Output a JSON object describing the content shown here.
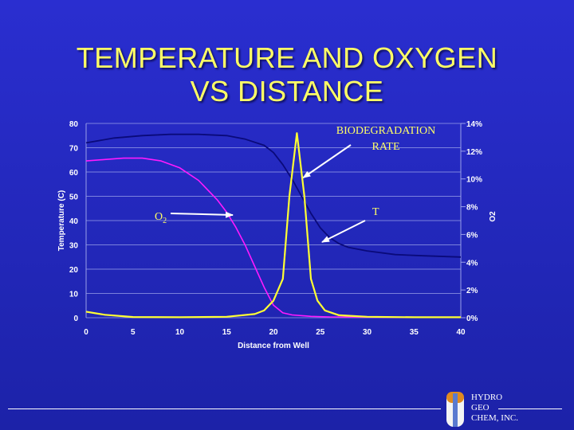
{
  "slide": {
    "title_line1": "TEMPERATURE AND OXYGEN",
    "title_line2": "VS DISTANCE"
  },
  "colors": {
    "temperature": "#0a0a7a",
    "oxygen": "#ff1aff",
    "biodegradation": "#ffff33",
    "label": "#ffff66",
    "grid": "#9aa0e8",
    "arrow": "#ffffff"
  },
  "chart_data": {
    "type": "line",
    "title": "",
    "xlabel": "Distance from Well",
    "ylabel": "Temperature (C)",
    "y2label": "O2",
    "xlim": [
      0,
      40
    ],
    "ylim": [
      0,
      80
    ],
    "y2lim": [
      0,
      14
    ],
    "x_ticks": [
      "0",
      "5",
      "10",
      "15",
      "20",
      "25",
      "30",
      "35",
      "40"
    ],
    "y_ticks": [
      "0",
      "10",
      "20",
      "30",
      "40",
      "50",
      "60",
      "70",
      "80"
    ],
    "y2_ticks": [
      "0%",
      "2%",
      "4%",
      "6%",
      "8%",
      "10%",
      "12%",
      "14%"
    ],
    "grid": true,
    "series": [
      {
        "name": "T",
        "axis": "left",
        "x": [
          0,
          3,
          6,
          9,
          12,
          15,
          17,
          19,
          20,
          21,
          22,
          23,
          24,
          25,
          26,
          27,
          28,
          30,
          33,
          36,
          40
        ],
        "y": [
          72,
          74,
          75,
          75.5,
          75.5,
          75,
          73.5,
          71,
          68,
          63,
          57,
          50,
          43,
          37,
          33,
          30.5,
          29,
          27.5,
          26,
          25.5,
          25
        ]
      },
      {
        "name": "O2",
        "axis": "right",
        "x": [
          0,
          2,
          4,
          6,
          8,
          10,
          12,
          14,
          15,
          16,
          17,
          18,
          19,
          20,
          21,
          22,
          24,
          26,
          30,
          35,
          40
        ],
        "y": [
          11.3,
          11.4,
          11.5,
          11.5,
          11.3,
          10.8,
          9.9,
          8.5,
          7.6,
          6.5,
          5.2,
          3.7,
          2.2,
          0.9,
          0.35,
          0.2,
          0.1,
          0.06,
          0.04,
          0.03,
          0.03
        ]
      },
      {
        "name": "BIODEGRADATION RATE",
        "axis": "left",
        "x": [
          0,
          2,
          5,
          10,
          15,
          18,
          19,
          20,
          21,
          21.7,
          22.5,
          23.3,
          24,
          24.7,
          25.5,
          27,
          30,
          35,
          40
        ],
        "y": [
          2.5,
          1.2,
          0.3,
          0.2,
          0.4,
          1.5,
          3,
          7,
          16,
          50,
          76,
          50,
          16,
          7,
          3,
          1,
          0.4,
          0.2,
          0.2
        ]
      }
    ],
    "annotations": [
      {
        "text": "BIODEGRADATION",
        "arrow_to": [
          23,
          57
        ]
      },
      {
        "text": "RATE"
      },
      {
        "text": "O",
        "subscript": "2",
        "arrow_to": [
          16,
          40
        ]
      },
      {
        "text": "T",
        "arrow_to": [
          25,
          30
        ]
      }
    ]
  },
  "footer": {
    "logo_line1": "HYDRO",
    "logo_line2": "GEO",
    "logo_line3": "CHEM, INC."
  }
}
